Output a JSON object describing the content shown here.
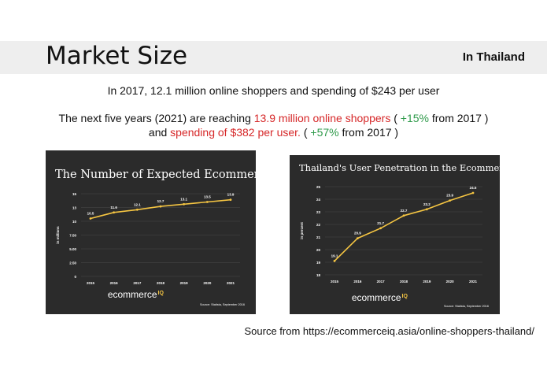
{
  "slide": {
    "title": "Market Size",
    "region": "In Thailand",
    "summary": "In 2017, 12.1 million online shoppers and spending of $243 per user",
    "forecast": {
      "p1": "The next five years (2021) are reaching ",
      "p2": "13.9 million online shoppers",
      "p3": " ( ",
      "p4": "+15%",
      "p5": " from 2017 )",
      "p6": "and ",
      "p7": "spending of $382 per user.",
      "p8": " ( ",
      "p9": "+57%",
      "p10": " from 2017 )"
    },
    "source": "Source from https://ecommerceiq.asia/online-shoppers-thailand/"
  },
  "chart_data": [
    {
      "type": "line",
      "title": "The Number of Expected Ecommerce Users",
      "xlabel": "",
      "ylabel": "in millions",
      "x": [
        "2015",
        "2016",
        "2017",
        "2018",
        "2019",
        "2020",
        "2021"
      ],
      "series": [
        {
          "values": [
            10.5,
            11.6,
            12.1,
            12.7,
            13.1,
            13.5,
            13.9
          ]
        }
      ],
      "ylim": [
        0,
        15
      ],
      "yticks": [
        "0",
        "2.50",
        "5.00",
        "7.50",
        "10",
        "13",
        "15"
      ],
      "ytick_values": [
        0,
        2.5,
        5,
        7.5,
        10,
        12.5,
        15
      ],
      "grid": true,
      "brand": "ecommerce",
      "brand_suffix": "IQ",
      "note": "Source: Statista, September 2016",
      "colors": {
        "background": "#2b2b2b",
        "line": "#f5c542",
        "text": "#ffffff",
        "grid": "#4a4a4a"
      }
    },
    {
      "type": "line",
      "title": "Thailand's User Penetration in the Ecommerce Market",
      "xlabel": "",
      "ylabel": "in percent",
      "x": [
        "2015",
        "2016",
        "2017",
        "2018",
        "2019",
        "2020",
        "2021"
      ],
      "series": [
        {
          "values": [
            19.1,
            20.9,
            21.7,
            22.7,
            23.2,
            23.9,
            24.5
          ]
        }
      ],
      "ylim": [
        18,
        25
      ],
      "yticks": [
        "18",
        "19",
        "20",
        "21",
        "22",
        "23",
        "24",
        "25"
      ],
      "ytick_values": [
        18,
        19,
        20,
        21,
        22,
        23,
        24,
        25
      ],
      "grid": true,
      "brand": "ecommerce",
      "brand_suffix": "IQ",
      "note": "Source: Statista, September 2016",
      "colors": {
        "background": "#2b2b2b",
        "line": "#f5c542",
        "text": "#ffffff",
        "grid": "#4a4a4a"
      }
    }
  ]
}
